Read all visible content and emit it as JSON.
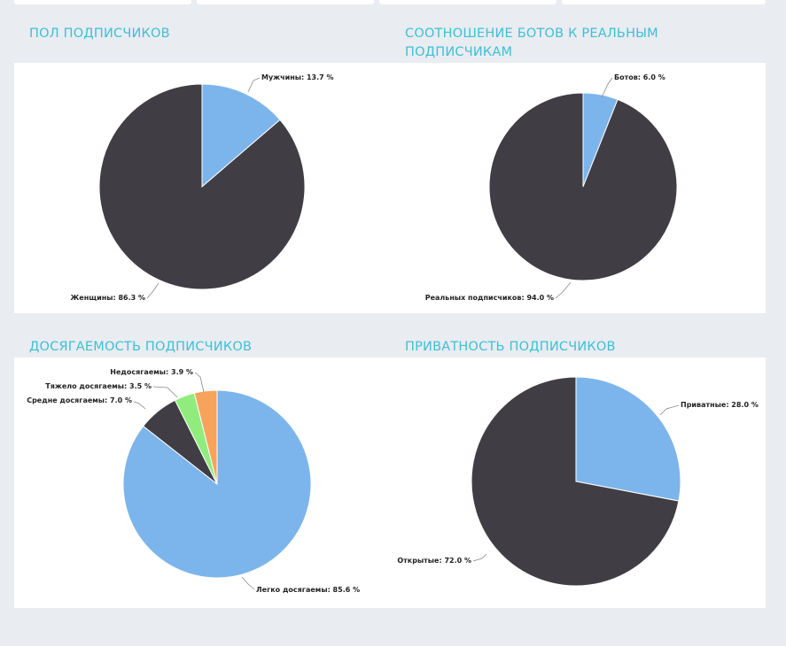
{
  "sections": [
    {
      "title": "ПОЛ ПОДПИСЧИКОВ"
    },
    {
      "title": "СООТНОШЕНИЕ БОТОВ К РЕАЛЬНЫМ ПОДПИСЧИКАМ"
    },
    {
      "title": "ДОСЯГАЕМОСТЬ ПОДПИСЧИКОВ"
    },
    {
      "title": "ПРИВАТНОСТЬ ПОДПИСЧИКОВ"
    }
  ],
  "colors": {
    "accent": "#3cc0d8",
    "dark_slice": "#403d44",
    "blue_slice": "#7cb5ec",
    "green_slice": "#90ed7d",
    "orange_slice": "#f7a35c",
    "background": "#e9ecf0"
  },
  "chart_data": [
    {
      "type": "pie",
      "title": "ПОЛ ПОДПИСЧИКОВ",
      "slices": [
        {
          "name": "Мужчины",
          "value": 13.7,
          "label": "Мужчины: 13.7 %",
          "color": "#7cb5ec"
        },
        {
          "name": "Женщины",
          "value": 86.3,
          "label": "Женщины: 86.3 %",
          "color": "#403d44"
        }
      ]
    },
    {
      "type": "pie",
      "title": "СООТНОШЕНИЕ БОТОВ К РЕАЛЬНЫМ ПОДПИСЧИКАМ",
      "slices": [
        {
          "name": "Ботов",
          "value": 6.0,
          "label": "Ботов: 6.0 %",
          "color": "#7cb5ec"
        },
        {
          "name": "Реальных подписчиков",
          "value": 94.0,
          "label": "Реальных подписчиков: 94.0 %",
          "color": "#403d44"
        }
      ]
    },
    {
      "type": "pie",
      "title": "ДОСЯГАЕМОСТЬ ПОДПИСЧИКОВ",
      "slices": [
        {
          "name": "Легко досягаемы",
          "value": 85.6,
          "label": "Легко досягаемы: 85.6 %",
          "color": "#7cb5ec"
        },
        {
          "name": "Средне досягаемы",
          "value": 7.0,
          "label": "Средне досягаемы: 7.0 %",
          "color": "#403d44"
        },
        {
          "name": "Тяжело досягаемы",
          "value": 3.5,
          "label": "Тяжело досягаемы: 3.5 %",
          "color": "#90ed7d"
        },
        {
          "name": "Недосягаемы",
          "value": 3.9,
          "label": "Недосягаемы: 3.9 %",
          "color": "#f7a35c"
        }
      ]
    },
    {
      "type": "pie",
      "title": "ПРИВАТНОСТЬ ПОДПИСЧИКОВ",
      "slices": [
        {
          "name": "Приватные",
          "value": 28.0,
          "label": "Приватные: 28.0 %",
          "color": "#7cb5ec"
        },
        {
          "name": "Открытые",
          "value": 72.0,
          "label": "Открытые: 72.0 %",
          "color": "#403d44"
        }
      ]
    }
  ]
}
